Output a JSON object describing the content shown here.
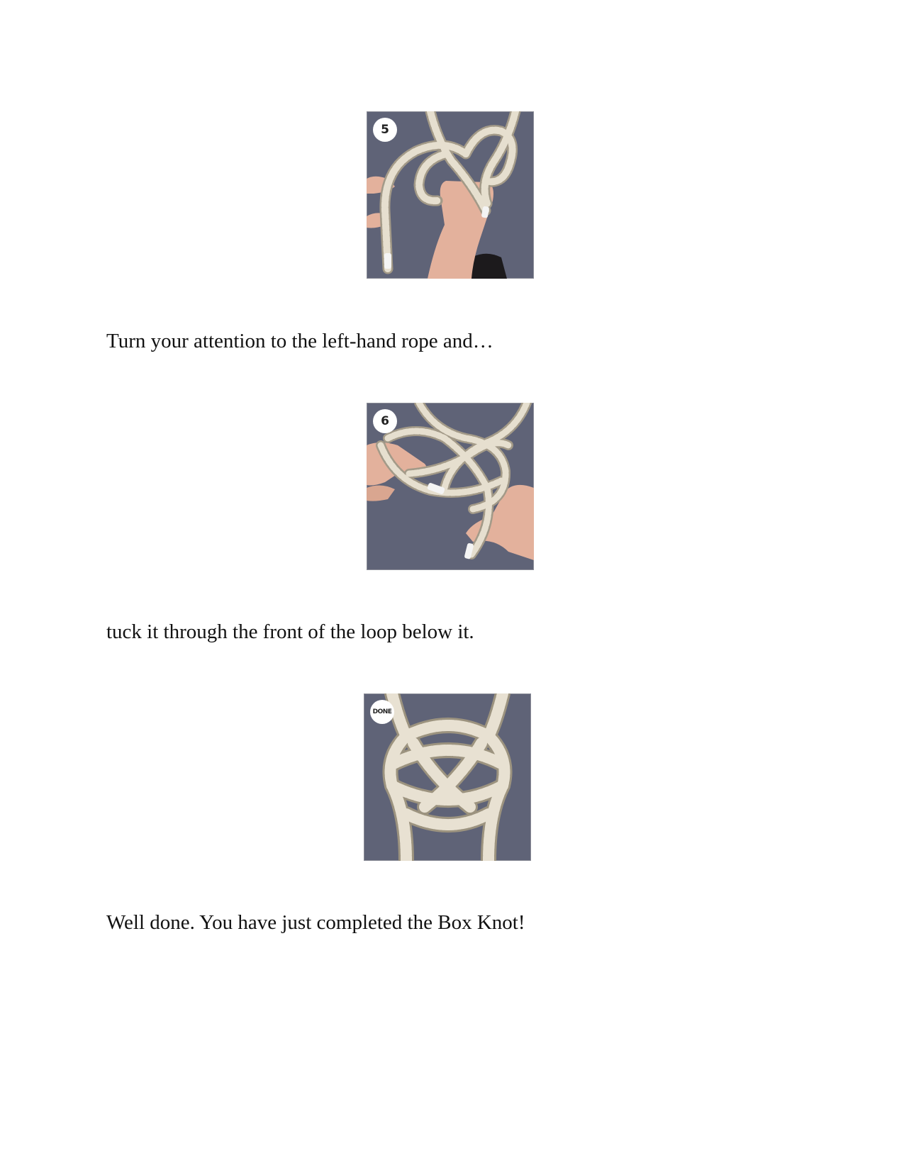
{
  "steps": [
    {
      "badge": "5",
      "icon": "box-knot-step-5-photo",
      "caption": "Turn your attention to the left-hand rope and…"
    },
    {
      "badge": "6",
      "icon": "box-knot-step-6-photo",
      "caption": "tuck it through the front of the loop below it."
    },
    {
      "badge": "DONE",
      "icon": "box-knot-finished-photo",
      "caption": "Well done. You have just completed the Box Knot!"
    }
  ],
  "colors": {
    "photo_background": "#5f6377",
    "rope": "#e4ddcd",
    "rope_shadow": "#a39a88",
    "skin": "#e8b9a4",
    "sleeve": "#1c1a1c"
  }
}
